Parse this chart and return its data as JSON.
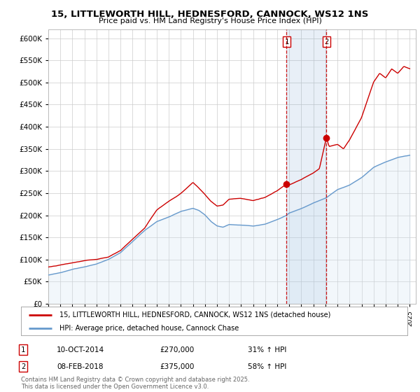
{
  "title": "15, LITTLEWORTH HILL, HEDNESFORD, CANNOCK, WS12 1NS",
  "subtitle": "Price paid vs. HM Land Registry's House Price Index (HPI)",
  "house_color": "#cc0000",
  "hpi_color": "#6699cc",
  "hpi_fill_color": "#cce0f0",
  "sale1_x": 2014.78,
  "sale1_y": 270000,
  "sale2_x": 2018.08,
  "sale2_y": 375000,
  "ylim": [
    0,
    620000
  ],
  "yticks": [
    0,
    50000,
    100000,
    150000,
    200000,
    250000,
    300000,
    350000,
    400000,
    450000,
    500000,
    550000,
    600000
  ],
  "xlim_start": 1995,
  "xlim_end": 2025.5,
  "legend_house": "15, LITTLEWORTH HILL, HEDNESFORD, CANNOCK, WS12 1NS (detached house)",
  "legend_hpi": "HPI: Average price, detached house, Cannock Chase",
  "annotation1_label": "1",
  "annotation1_date": "10-OCT-2014",
  "annotation1_price": "£270,000",
  "annotation1_hpi": "31% ↑ HPI",
  "annotation2_label": "2",
  "annotation2_date": "08-FEB-2018",
  "annotation2_price": "£375,000",
  "annotation2_hpi": "58% ↑ HPI",
  "footer": "Contains HM Land Registry data © Crown copyright and database right 2025.\nThis data is licensed under the Open Government Licence v3.0.",
  "bg_color": "#ffffff",
  "grid_color": "#cccccc"
}
